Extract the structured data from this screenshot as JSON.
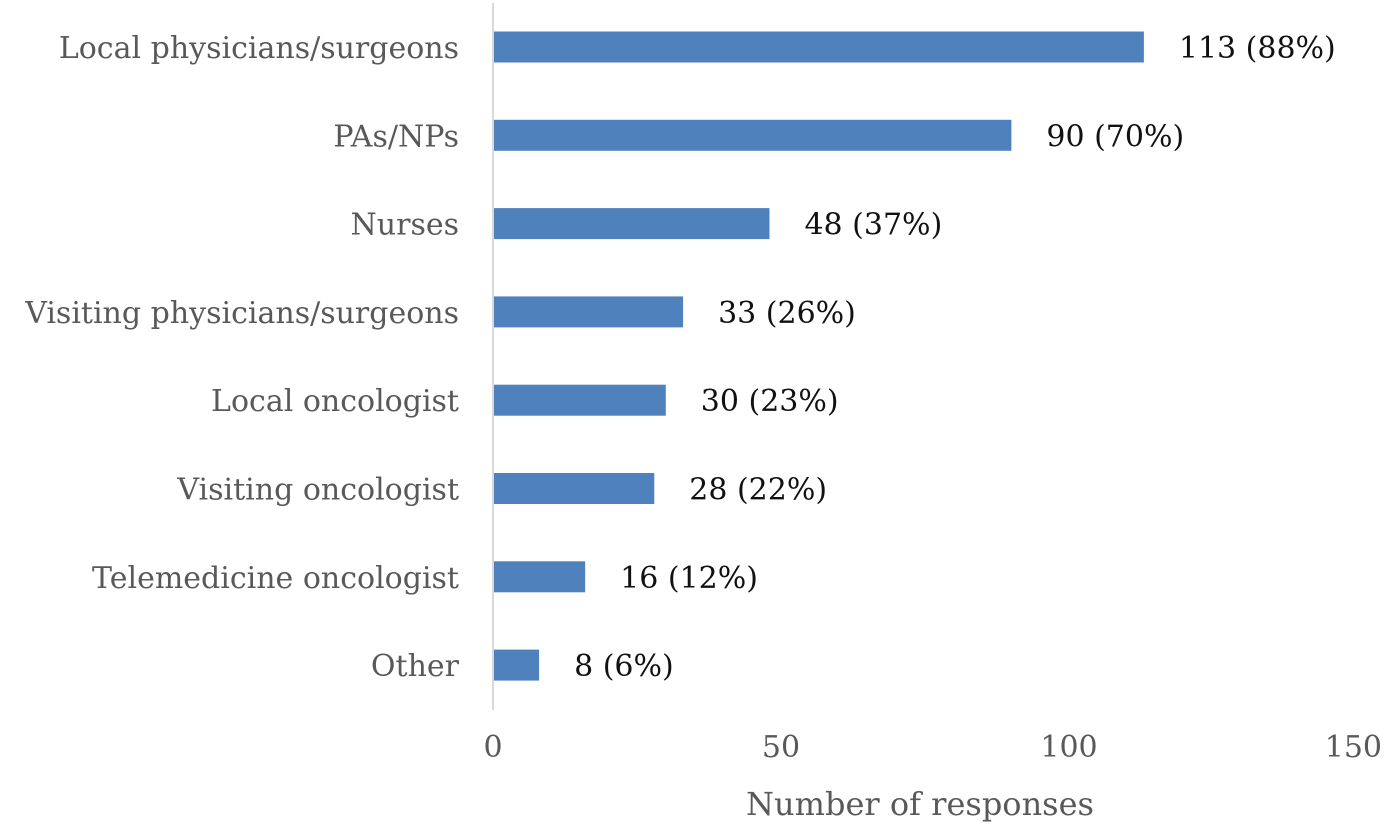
{
  "chart_data": {
    "type": "bar",
    "orientation": "horizontal",
    "title": "",
    "xlabel": "Number of responses",
    "ylabel": "",
    "xlim": [
      0,
      150
    ],
    "x_ticks": [
      "0",
      "50",
      "100",
      "150"
    ],
    "grid": false,
    "legend": "none",
    "bar_color": "#4f81bd",
    "categories": [
      "Local physicians/surgeons",
      "PAs/NPs",
      "Nurses",
      "Visiting physicians/surgeons",
      "Local oncologist",
      "Visiting oncologist",
      "Telemedicine oncologist",
      "Other"
    ],
    "values": [
      113,
      90,
      48,
      33,
      30,
      28,
      16,
      8
    ],
    "data_labels": [
      "113 (88%)",
      "90 (70%)",
      "48 (37%)",
      "33 (26%)",
      "30 (23%)",
      "28 (22%)",
      "16 (12%)",
      "8 (6%)"
    ]
  }
}
